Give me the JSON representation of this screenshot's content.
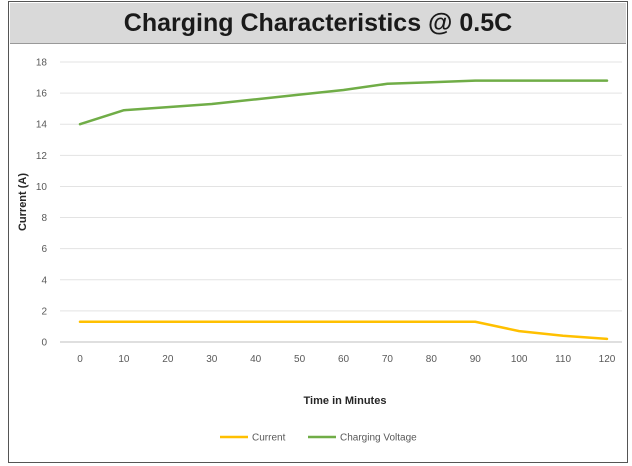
{
  "chart_data": {
    "type": "line",
    "title": "Charging Characteristics @ 0.5C",
    "xlabel": "Time in Minutes",
    "ylabel": "Current (A)",
    "x": [
      0,
      10,
      20,
      30,
      40,
      50,
      60,
      70,
      80,
      90,
      100,
      110,
      120
    ],
    "xticks": [
      "0",
      "10",
      "20",
      "30",
      "40",
      "50",
      "60",
      "70",
      "80",
      "90",
      "100",
      "110",
      "120"
    ],
    "yticks": [
      "0",
      "2",
      "4",
      "6",
      "8",
      "10",
      "12",
      "14",
      "16",
      "18"
    ],
    "ylim": [
      0,
      18
    ],
    "grid": true,
    "legend_position": "bottom",
    "series": [
      {
        "name": "Current",
        "color": "#ffc000",
        "values": [
          1.3,
          1.3,
          1.3,
          1.3,
          1.3,
          1.3,
          1.3,
          1.3,
          1.3,
          1.3,
          0.7,
          0.4,
          0.2
        ]
      },
      {
        "name": "Charging Voltage",
        "color": "#70ad47",
        "values": [
          14.0,
          14.9,
          15.1,
          15.3,
          15.6,
          15.9,
          16.2,
          16.6,
          16.7,
          16.8,
          16.8,
          16.8,
          16.8
        ]
      }
    ]
  }
}
